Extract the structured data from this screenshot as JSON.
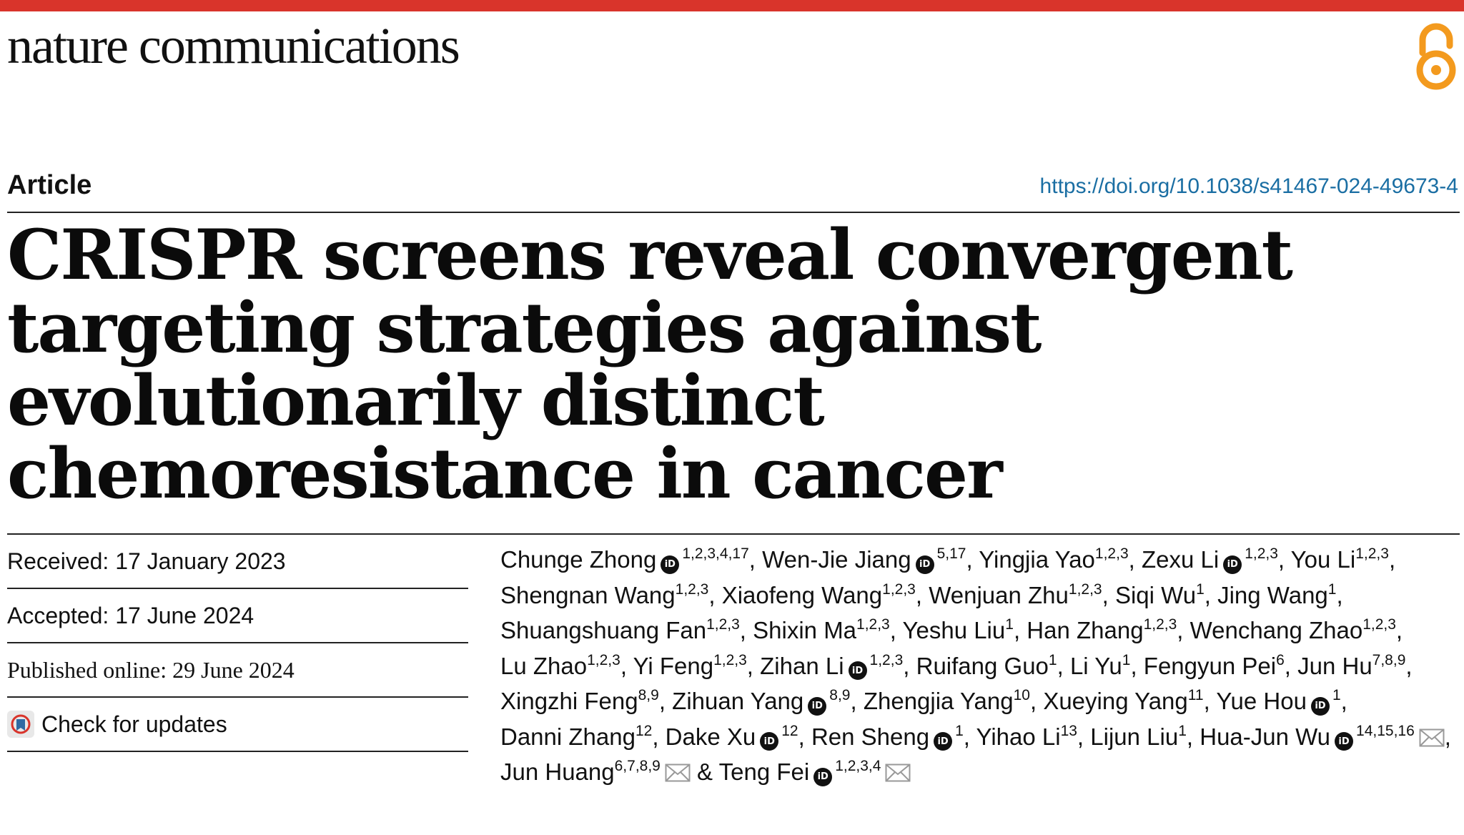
{
  "header": {
    "journal_name": "nature communications",
    "section": "Article",
    "doi": "https://doi.org/10.1038/s41467-024-49673-4",
    "open_access_icon": "open-access-icon"
  },
  "title": "CRISPR screens reveal convergent targeting strategies against evolutionarily distinct chemoresistance in cancer",
  "meta": {
    "received": "Received: 17 January 2023",
    "accepted": "Accepted: 17 June 2024",
    "published": "Published online: 29 June 2024",
    "check_updates": "Check for updates"
  },
  "authors": [
    {
      "name": "Chunge Zhong",
      "sup": "1,2,3,4,17",
      "orcid": true,
      "sep": ","
    },
    {
      "name": "Wen-Jie Jiang",
      "sup": "5,17",
      "orcid": true,
      "sep": ","
    },
    {
      "name": "Yingjia Yao",
      "sup": "1,2,3",
      "orcid": false,
      "sep": ","
    },
    {
      "name": "Zexu Li",
      "sup": "1,2,3",
      "orcid": true,
      "sep": ","
    },
    {
      "name": "You Li",
      "sup": "1,2,3",
      "orcid": false,
      "sep": ","
    },
    {
      "name": "Shengnan Wang",
      "sup": "1,2,3",
      "orcid": false,
      "sep": ","
    },
    {
      "name": "Xiaofeng Wang",
      "sup": "1,2,3",
      "orcid": false,
      "sep": ","
    },
    {
      "name": "Wenjuan Zhu",
      "sup": "1,2,3",
      "orcid": false,
      "sep": ","
    },
    {
      "name": "Siqi Wu",
      "sup": "1",
      "orcid": false,
      "sep": ","
    },
    {
      "name": "Jing Wang",
      "sup": "1",
      "orcid": false,
      "sep": ","
    },
    {
      "name": "Shuangshuang Fan",
      "sup": "1,2,3",
      "orcid": false,
      "sep": ","
    },
    {
      "name": "Shixin Ma",
      "sup": "1,2,3",
      "orcid": false,
      "sep": ","
    },
    {
      "name": "Yeshu Liu",
      "sup": "1",
      "orcid": false,
      "sep": ","
    },
    {
      "name": "Han Zhang",
      "sup": "1,2,3",
      "orcid": false,
      "sep": ","
    },
    {
      "name": "Wenchang Zhao",
      "sup": "1,2,3",
      "orcid": false,
      "sep": ","
    },
    {
      "name": "Lu Zhao",
      "sup": "1,2,3",
      "orcid": false,
      "sep": ","
    },
    {
      "name": "Yi Feng",
      "sup": "1,2,3",
      "orcid": false,
      "sep": ","
    },
    {
      "name": "Zihan Li",
      "sup": "1,2,3",
      "orcid": true,
      "sep": ","
    },
    {
      "name": "Ruifang Guo",
      "sup": "1",
      "orcid": false,
      "sep": ","
    },
    {
      "name": "Li Yu",
      "sup": "1",
      "orcid": false,
      "sep": ","
    },
    {
      "name": "Fengyun Pei",
      "sup": "6",
      "orcid": false,
      "sep": ","
    },
    {
      "name": "Jun Hu",
      "sup": "7,8,9",
      "orcid": false,
      "sep": ","
    },
    {
      "name": "Xingzhi Feng",
      "sup": "8,9",
      "orcid": false,
      "sep": ","
    },
    {
      "name": "Zihuan Yang",
      "sup": "8,9",
      "orcid": true,
      "sep": ","
    },
    {
      "name": "Zhengjia Yang",
      "sup": "10",
      "orcid": false,
      "sep": ","
    },
    {
      "name": "Xueying Yang",
      "sup": "11",
      "orcid": false,
      "sep": ","
    },
    {
      "name": "Yue Hou",
      "sup": "1",
      "orcid": true,
      "sep": ","
    },
    {
      "name": "Danni Zhang",
      "sup": "12",
      "orcid": false,
      "sep": ","
    },
    {
      "name": "Dake Xu",
      "sup": "12",
      "orcid": true,
      "sep": ","
    },
    {
      "name": "Ren Sheng",
      "sup": "1",
      "orcid": true,
      "sep": ","
    },
    {
      "name": "Yihao Li",
      "sup": "13",
      "orcid": false,
      "sep": ","
    },
    {
      "name": "Lijun Liu",
      "sup": "1",
      "orcid": false,
      "sep": ","
    },
    {
      "name": "Hua-Jun Wu",
      "sup": "14,15,16",
      "orcid": true,
      "mail": true,
      "sep": ","
    },
    {
      "name": "Jun Huang",
      "sup": "6,7,8,9",
      "orcid": false,
      "mail": true,
      "sep": " &"
    },
    {
      "name": "Teng Fei",
      "sup": "1,2,3,4",
      "orcid": true,
      "mail": true,
      "sep": ""
    }
  ]
}
